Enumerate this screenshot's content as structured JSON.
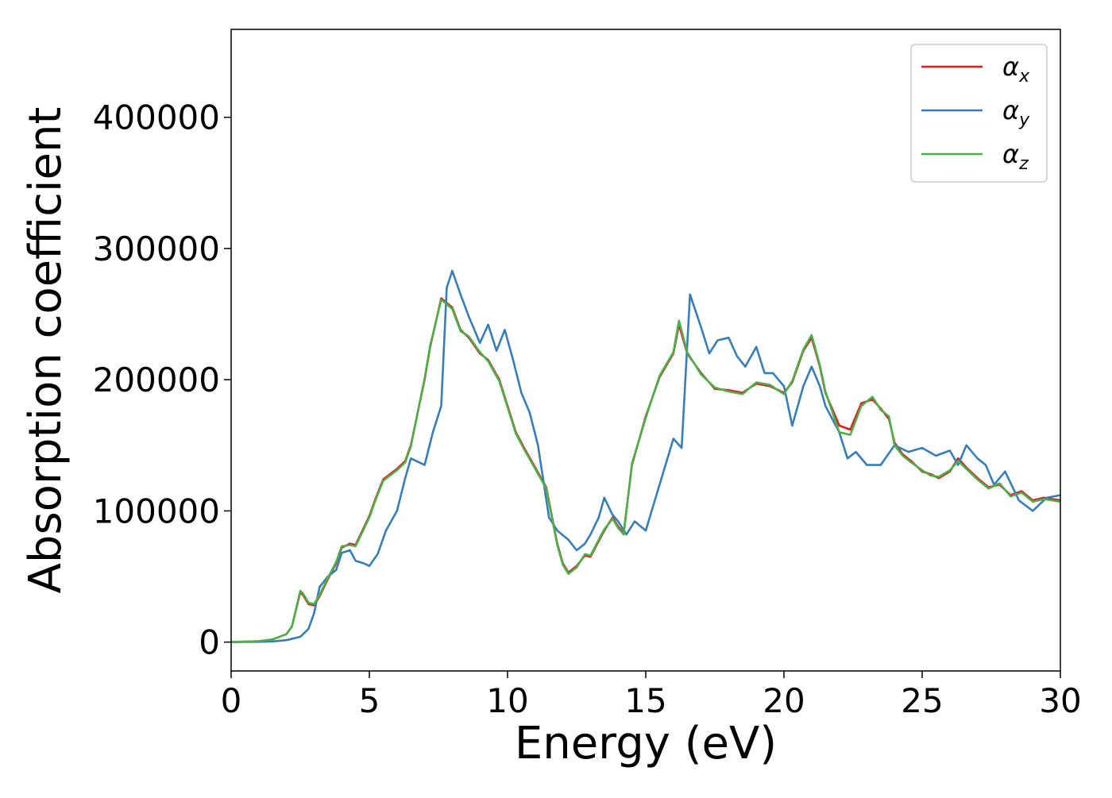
{
  "chart_data": {
    "type": "line",
    "title": "",
    "xlabel": "Energy (eV)",
    "ylabel": "Absorption coefficient",
    "xlim": [
      0,
      30
    ],
    "ylim": [
      -22000,
      467000
    ],
    "x_ticks": [
      0,
      5,
      10,
      15,
      20,
      25,
      30
    ],
    "y_ticks": [
      0,
      100000,
      200000,
      300000,
      400000
    ],
    "grid": false,
    "legend_position": "top-right",
    "series": [
      {
        "name": "α_x",
        "legend_main": "α",
        "legend_sub": "x",
        "color": "#e41a1c",
        "x": [
          0,
          1,
          1.5,
          2,
          2.2,
          2.5,
          2.6,
          2.8,
          3.0,
          3.2,
          3.5,
          3.8,
          4.0,
          4.3,
          4.5,
          5.0,
          5.2,
          5.5,
          6.0,
          6.3,
          6.5,
          7.0,
          7.2,
          7.6,
          8.0,
          8.3,
          8.6,
          9.0,
          9.3,
          9.7,
          10.0,
          10.3,
          10.6,
          11.0,
          11.4,
          11.8,
          12.0,
          12.2,
          12.5,
          12.8,
          13.0,
          13.5,
          13.8,
          14.0,
          14.2,
          14.5,
          15.0,
          15.5,
          16.0,
          16.2,
          16.5,
          17.0,
          17.5,
          18.0,
          18.5,
          19.0,
          19.5,
          20.0,
          20.3,
          20.7,
          21.0,
          21.3,
          21.5,
          22.0,
          22.4,
          22.8,
          23.2,
          23.5,
          23.8,
          24.0,
          24.3,
          24.6,
          25.0,
          25.3,
          25.6,
          26.0,
          26.3,
          26.6,
          27.0,
          27.4,
          27.8,
          28.2,
          28.6,
          29.0,
          29.4,
          30.0
        ],
        "y": [
          0,
          700,
          2000,
          6000,
          12000,
          38000,
          36000,
          29000,
          28000,
          35000,
          48000,
          60000,
          72000,
          75000,
          74000,
          96000,
          108000,
          124000,
          132000,
          138000,
          150000,
          200000,
          225000,
          262000,
          255000,
          238000,
          232000,
          220000,
          215000,
          200000,
          180000,
          160000,
          148000,
          133000,
          118000,
          75000,
          60000,
          53000,
          58000,
          66000,
          65000,
          85000,
          95000,
          88000,
          83000,
          135000,
          172000,
          202000,
          220000,
          242000,
          220000,
          205000,
          193000,
          192000,
          190000,
          197000,
          195000,
          190000,
          198000,
          222000,
          232000,
          210000,
          190000,
          165000,
          162000,
          182000,
          185000,
          178000,
          170000,
          152000,
          143000,
          138000,
          130000,
          128000,
          125000,
          130000,
          140000,
          133000,
          125000,
          118000,
          120000,
          112000,
          115000,
          108000,
          110000,
          108000
        ]
      },
      {
        "name": "α_y",
        "legend_main": "α",
        "legend_sub": "y",
        "color": "#377eb8",
        "x": [
          0,
          1,
          1.5,
          2,
          2.5,
          2.8,
          3.0,
          3.2,
          3.5,
          3.8,
          4.0,
          4.3,
          4.5,
          4.8,
          5.0,
          5.3,
          5.6,
          6.0,
          6.3,
          6.5,
          7.0,
          7.3,
          7.6,
          7.8,
          8.0,
          8.3,
          8.6,
          9.0,
          9.3,
          9.6,
          9.9,
          10.2,
          10.5,
          10.8,
          11.1,
          11.5,
          11.8,
          12.2,
          12.5,
          12.8,
          13.0,
          13.3,
          13.5,
          13.8,
          14.0,
          14.3,
          14.6,
          15.0,
          15.5,
          16.0,
          16.3,
          16.6,
          17.0,
          17.3,
          17.6,
          18.0,
          18.3,
          18.6,
          19.0,
          19.3,
          19.6,
          20.0,
          20.3,
          20.7,
          21.0,
          21.3,
          21.5,
          22.0,
          22.3,
          22.6,
          23.0,
          23.5,
          24.0,
          24.5,
          25.0,
          25.5,
          26.0,
          26.3,
          26.6,
          27.0,
          27.3,
          27.6,
          28.0,
          28.5,
          29.0,
          29.5,
          30.0
        ],
        "y": [
          0,
          200,
          500,
          1500,
          4000,
          10000,
          22000,
          42000,
          50000,
          55000,
          68000,
          70000,
          62000,
          60000,
          58000,
          67000,
          85000,
          100000,
          125000,
          140000,
          135000,
          160000,
          180000,
          270000,
          283000,
          265000,
          248000,
          228000,
          242000,
          222000,
          238000,
          215000,
          190000,
          175000,
          150000,
          95000,
          85000,
          78000,
          70000,
          75000,
          82000,
          95000,
          110000,
          97000,
          92000,
          82000,
          92000,
          85000,
          120000,
          155000,
          148000,
          265000,
          240000,
          220000,
          230000,
          232000,
          218000,
          210000,
          225000,
          205000,
          205000,
          195000,
          165000,
          195000,
          210000,
          195000,
          180000,
          160000,
          140000,
          145000,
          135000,
          135000,
          150000,
          145000,
          148000,
          142000,
          146000,
          135000,
          150000,
          140000,
          135000,
          120000,
          130000,
          108000,
          100000,
          110000,
          112000
        ]
      },
      {
        "name": "α_z",
        "legend_main": "α",
        "legend_sub": "z",
        "color": "#4daf4a",
        "x": [
          0,
          1,
          1.5,
          2,
          2.2,
          2.5,
          2.6,
          2.8,
          3.0,
          3.2,
          3.5,
          3.8,
          4.0,
          4.3,
          4.5,
          5.0,
          5.2,
          5.5,
          6.0,
          6.3,
          6.5,
          7.0,
          7.2,
          7.6,
          8.0,
          8.3,
          8.6,
          9.0,
          9.3,
          9.7,
          10.0,
          10.3,
          10.6,
          11.0,
          11.4,
          11.8,
          12.0,
          12.2,
          12.5,
          12.8,
          13.0,
          13.5,
          13.8,
          14.0,
          14.2,
          14.5,
          15.0,
          15.5,
          16.0,
          16.2,
          16.5,
          17.0,
          17.5,
          18.0,
          18.5,
          19.0,
          19.5,
          20.0,
          20.3,
          20.7,
          21.0,
          21.3,
          21.5,
          22.0,
          22.4,
          22.8,
          23.2,
          23.5,
          23.8,
          24.0,
          24.3,
          24.6,
          25.0,
          25.3,
          25.6,
          26.0,
          26.3,
          26.6,
          27.0,
          27.4,
          27.8,
          28.2,
          28.6,
          29.0,
          29.4,
          30.0
        ],
        "y": [
          0,
          700,
          2000,
          6000,
          12000,
          39000,
          37000,
          30000,
          29000,
          36000,
          49000,
          61000,
          73000,
          74000,
          73000,
          95000,
          107000,
          123000,
          131000,
          137000,
          149000,
          201000,
          226000,
          261000,
          254000,
          237000,
          233000,
          221000,
          214000,
          199000,
          179000,
          159000,
          147000,
          132000,
          117000,
          74000,
          59000,
          52000,
          57000,
          67000,
          66000,
          86000,
          94000,
          87000,
          82000,
          136000,
          171000,
          203000,
          221000,
          245000,
          221000,
          204000,
          194000,
          191000,
          189000,
          198000,
          196000,
          189000,
          199000,
          223000,
          234000,
          211000,
          191000,
          160000,
          158000,
          180000,
          187000,
          177000,
          172000,
          150000,
          142000,
          137000,
          131000,
          127000,
          126000,
          131000,
          138000,
          132000,
          124000,
          117000,
          121000,
          111000,
          114000,
          107000,
          109000,
          107000
        ]
      }
    ]
  }
}
